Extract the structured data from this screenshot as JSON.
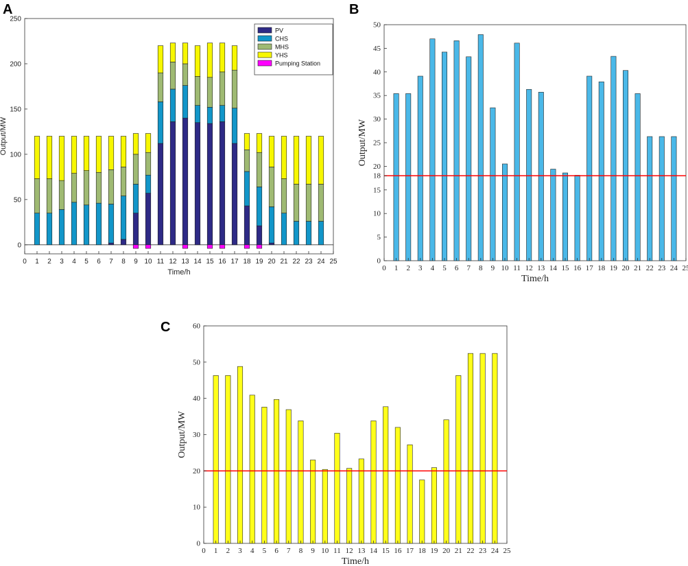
{
  "panels": {
    "A": "A",
    "B": "B",
    "C": "C"
  },
  "chart_data": [
    {
      "id": "A",
      "type": "bar",
      "stacked": true,
      "xlabel": "Time/h",
      "ylabel": "Output/MW",
      "xlim": [
        0,
        25
      ],
      "ylim": [
        -10,
        250
      ],
      "yticks": [
        0,
        50,
        100,
        150,
        200,
        250
      ],
      "xticks": [
        0,
        1,
        2,
        3,
        4,
        5,
        6,
        7,
        8,
        9,
        10,
        11,
        12,
        13,
        14,
        15,
        16,
        17,
        18,
        19,
        20,
        21,
        22,
        23,
        24,
        25
      ],
      "legend_position": "top-right",
      "categories": [
        1,
        2,
        3,
        4,
        5,
        6,
        7,
        8,
        9,
        10,
        11,
        12,
        13,
        14,
        15,
        16,
        17,
        18,
        19,
        20,
        21,
        22,
        23,
        24
      ],
      "series": [
        {
          "name": "PV",
          "color": "#2e2a86",
          "values": [
            0,
            0,
            0,
            0,
            0,
            0,
            2,
            6,
            35,
            57,
            112,
            136,
            140,
            135,
            134,
            136,
            112,
            43,
            21,
            2,
            0,
            0,
            0,
            0
          ]
        },
        {
          "name": "CHS",
          "color": "#1296c9",
          "values": [
            35,
            35,
            39,
            47,
            44,
            46,
            43,
            48,
            32,
            20,
            46,
            36,
            36,
            19,
            18,
            18,
            39,
            38,
            43,
            40,
            35,
            26,
            26,
            26
          ]
        },
        {
          "name": "MHS",
          "color": "#9fba73",
          "values": [
            38,
            38,
            32,
            32,
            38,
            34,
            38,
            32,
            33,
            25,
            32,
            30,
            24,
            32,
            33,
            37,
            42,
            24,
            38,
            44,
            38,
            41,
            41,
            41
          ]
        },
        {
          "name": "YHS",
          "color": "#f7f700",
          "values": [
            47,
            47,
            49,
            41,
            38,
            40,
            37,
            34,
            23,
            21,
            30,
            21,
            23,
            34,
            38,
            32,
            27,
            18,
            21,
            34,
            47,
            53,
            53,
            53
          ]
        },
        {
          "name": "Pumping Station",
          "color": "#ff00ff",
          "values": [
            0,
            0,
            0,
            0,
            0,
            0,
            0,
            0,
            -4,
            -4,
            0,
            0,
            -4,
            0,
            -4,
            -4,
            0,
            -4,
            -4,
            0,
            0,
            0,
            0,
            0
          ]
        }
      ]
    },
    {
      "id": "B",
      "type": "bar",
      "xlabel": "Time/h",
      "ylabel": "Output/MW",
      "xlim": [
        0,
        25
      ],
      "ylim": [
        0,
        50
      ],
      "yticks": [
        0,
        5,
        10,
        15,
        18,
        20,
        25,
        30,
        35,
        40,
        45,
        50
      ],
      "xticks": [
        0,
        1,
        2,
        3,
        4,
        5,
        6,
        7,
        8,
        9,
        10,
        11,
        12,
        13,
        14,
        15,
        16,
        17,
        18,
        19,
        20,
        21,
        22,
        23,
        24,
        25
      ],
      "bar_color": "#4ab8e8",
      "categories": [
        1,
        2,
        3,
        4,
        5,
        6,
        7,
        8,
        9,
        10,
        11,
        12,
        13,
        14,
        15,
        16,
        17,
        18,
        19,
        20,
        21,
        22,
        23,
        24
      ],
      "values": [
        35.4,
        35.4,
        39.1,
        47.0,
        44.2,
        46.6,
        43.2,
        47.9,
        32.4,
        20.5,
        46.1,
        36.3,
        35.7,
        19.4,
        18.6,
        18.1,
        39.1,
        37.9,
        43.3,
        40.3,
        35.4,
        26.3,
        26.3,
        26.3
      ],
      "reference_line": {
        "value": 18,
        "color": "#ff0000"
      }
    },
    {
      "id": "C",
      "type": "bar",
      "xlabel": "Time/h",
      "ylabel": "Output/MW",
      "xlim": [
        0,
        25
      ],
      "ylim": [
        0,
        60
      ],
      "yticks": [
        0,
        10,
        20,
        30,
        40,
        50,
        60
      ],
      "xticks": [
        0,
        1,
        2,
        3,
        4,
        5,
        6,
        7,
        8,
        9,
        10,
        11,
        12,
        13,
        14,
        15,
        16,
        17,
        18,
        19,
        20,
        21,
        22,
        23,
        24,
        25
      ],
      "bar_color": "#ffff1a",
      "categories": [
        1,
        2,
        3,
        4,
        5,
        6,
        7,
        8,
        9,
        10,
        11,
        12,
        13,
        14,
        15,
        16,
        17,
        18,
        19,
        20,
        21,
        22,
        23,
        24
      ],
      "values": [
        46.3,
        46.3,
        48.8,
        40.9,
        37.6,
        39.7,
        36.9,
        33.8,
        23.0,
        20.4,
        30.4,
        20.7,
        23.3,
        33.8,
        37.7,
        32.0,
        27.2,
        17.5,
        20.9,
        34.1,
        46.3,
        52.4,
        52.4,
        52.4
      ],
      "reference_line": {
        "value": 20,
        "color": "#ff0000"
      }
    }
  ]
}
